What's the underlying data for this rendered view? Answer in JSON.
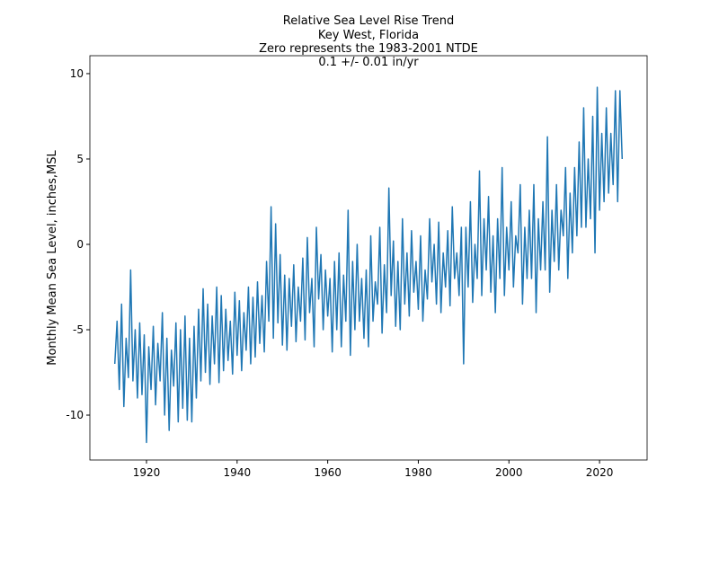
{
  "chart_data": {
    "type": "line",
    "title": "Relative Sea Level Rise Trend",
    "subtitle": [
      "Key West, Florida",
      "Zero represents the 1983-2001 NTDE",
      "0.1 +/- 0.01 in/yr"
    ],
    "y_label": "Monthly Mean Sea Level, inches,MSL",
    "xlim": [
      1907.5,
      2030.5
    ],
    "xticks": [
      1920,
      1940,
      1960,
      1980,
      2000,
      2020
    ],
    "ylim": [
      -12.63,
      11.05
    ],
    "yticks": [
      -10,
      -5,
      0,
      5,
      10
    ],
    "grid": false,
    "x": [
      1913,
      1913.5,
      1914,
      1914.5,
      1915,
      1915.5,
      1916,
      1916.5,
      1917,
      1917.5,
      1918,
      1918.5,
      1919,
      1919.5,
      1920,
      1920.5,
      1921,
      1921.5,
      1922,
      1922.5,
      1923,
      1923.5,
      1924,
      1924.5,
      1925,
      1925.5,
      1926,
      1926.5,
      1927,
      1927.5,
      1928,
      1928.5,
      1929,
      1929.5,
      1930,
      1930.5,
      1931,
      1931.5,
      1932,
      1932.5,
      1933,
      1933.5,
      1934,
      1934.5,
      1935,
      1935.5,
      1936,
      1936.5,
      1937,
      1937.5,
      1938,
      1938.5,
      1939,
      1939.5,
      1940,
      1940.5,
      1941,
      1941.5,
      1942,
      1942.5,
      1943,
      1943.5,
      1944,
      1944.5,
      1945,
      1945.5,
      1946,
      1946.5,
      1947,
      1947.5,
      1948,
      1948.5,
      1949,
      1949.5,
      1950,
      1950.5,
      1951,
      1951.5,
      1952,
      1952.5,
      1953,
      1953.5,
      1954,
      1954.5,
      1955,
      1955.5,
      1956,
      1956.5,
      1957,
      1957.5,
      1958,
      1958.5,
      1959,
      1959.5,
      1960,
      1960.5,
      1961,
      1961.5,
      1962,
      1962.5,
      1963,
      1963.5,
      1964,
      1964.5,
      1965,
      1965.5,
      1966,
      1966.5,
      1967,
      1967.5,
      1968,
      1968.5,
      1969,
      1969.5,
      1970,
      1970.5,
      1971,
      1971.5,
      1972,
      1972.5,
      1973,
      1973.5,
      1974,
      1974.5,
      1975,
      1975.5,
      1976,
      1976.5,
      1977,
      1977.5,
      1978,
      1978.5,
      1979,
      1979.5,
      1980,
      1980.5,
      1981,
      1981.5,
      1982,
      1982.5,
      1983,
      1983.5,
      1984,
      1984.5,
      1985,
      1985.5,
      1986,
      1986.5,
      1987,
      1987.5,
      1988,
      1988.5,
      1989,
      1989.5,
      1990,
      1990.5,
      1991,
      1991.5,
      1992,
      1992.5,
      1993,
      1993.5,
      1994,
      1994.5,
      1995,
      1995.5,
      1996,
      1996.5,
      1997,
      1997.5,
      1998,
      1998.5,
      1999,
      1999.5,
      2000,
      2000.5,
      2001,
      2001.5,
      2002,
      2002.5,
      2003,
      2003.5,
      2004,
      2004.5,
      2005,
      2005.5,
      2006,
      2006.5,
      2007,
      2007.5,
      2008,
      2008.5,
      2009,
      2009.5,
      2010,
      2010.5,
      2011,
      2011.5,
      2012,
      2012.5,
      2013,
      2013.5,
      2014,
      2014.5,
      2015,
      2015.5,
      2016,
      2016.5,
      2017,
      2017.5,
      2018,
      2018.5,
      2019,
      2019.5,
      2020,
      2020.5,
      2021,
      2021.5,
      2022,
      2022.5,
      2023,
      2023.5,
      2024,
      2024.5,
      2025
    ],
    "series": [
      {
        "name": "Monthly Mean Sea Level",
        "color": "#1f77b4",
        "values": [
          -7.0,
          -4.5,
          -8.5,
          -3.5,
          -9.5,
          -5.5,
          -7.8,
          -1.5,
          -8.0,
          -5.0,
          -9.0,
          -4.6,
          -8.8,
          -5.3,
          -11.6,
          -6.0,
          -8.5,
          -4.8,
          -9.4,
          -5.8,
          -8.0,
          -4.0,
          -10.0,
          -5.5,
          -10.9,
          -6.2,
          -8.3,
          -4.6,
          -10.4,
          -5.0,
          -9.6,
          -4.2,
          -10.3,
          -5.5,
          -10.4,
          -4.8,
          -9.0,
          -3.8,
          -8.0,
          -2.6,
          -7.5,
          -3.5,
          -8.2,
          -4.2,
          -7.0,
          -2.5,
          -8.1,
          -3.0,
          -7.4,
          -3.8,
          -6.8,
          -4.5,
          -7.6,
          -2.8,
          -6.5,
          -3.3,
          -7.4,
          -4.0,
          -6.2,
          -2.5,
          -7.0,
          -3.1,
          -6.6,
          -2.2,
          -5.8,
          -3.0,
          -6.3,
          -1.0,
          -4.5,
          2.2,
          -5.5,
          1.2,
          -4.6,
          -0.6,
          -5.9,
          -1.8,
          -6.2,
          -2.0,
          -4.8,
          -1.2,
          -5.7,
          -2.5,
          -4.5,
          -0.8,
          -5.6,
          0.4,
          -4.0,
          -2.0,
          -6.0,
          1.0,
          -3.2,
          -0.6,
          -5.0,
          -1.5,
          -4.2,
          -2.0,
          -6.3,
          -1.0,
          -5.0,
          -0.5,
          -6.0,
          -1.8,
          -4.5,
          2.0,
          -6.5,
          -1.0,
          -5.0,
          0.0,
          -4.5,
          -2.0,
          -5.5,
          -1.5,
          -6.0,
          0.5,
          -4.5,
          -2.2,
          -3.5,
          1.0,
          -5.2,
          -1.2,
          -4.0,
          3.3,
          -3.0,
          0.2,
          -4.8,
          -1.0,
          -5.0,
          1.5,
          -3.5,
          -0.5,
          -4.2,
          0.8,
          -2.8,
          -1.0,
          -3.8,
          0.5,
          -4.5,
          -1.5,
          -3.2,
          1.5,
          -2.2,
          0.0,
          -3.5,
          1.3,
          -4.0,
          -0.5,
          -2.5,
          0.8,
          -3.6,
          2.2,
          -2.0,
          -0.5,
          -3.0,
          1.0,
          -7.0,
          1.0,
          -2.5,
          2.5,
          -3.4,
          0.0,
          -2.0,
          4.3,
          -3.0,
          1.5,
          -1.5,
          2.8,
          -2.8,
          0.5,
          -4.0,
          1.5,
          -2.0,
          4.5,
          -3.0,
          1.0,
          -1.5,
          2.5,
          -2.5,
          0.5,
          -0.5,
          3.5,
          -3.5,
          1.0,
          -2.0,
          2.0,
          -2.0,
          3.5,
          -4.0,
          1.5,
          -1.5,
          2.5,
          -1.5,
          6.3,
          -2.8,
          2.0,
          -1.0,
          3.5,
          -1.5,
          2.0,
          0.5,
          4.5,
          -2.0,
          3.0,
          -0.5,
          4.5,
          0.5,
          6.0,
          1.0,
          8.0,
          1.0,
          5.0,
          1.5,
          7.5,
          -0.5,
          9.2,
          2.0,
          6.5,
          2.5,
          8.0,
          3.0,
          6.5,
          3.5,
          9.0,
          2.5,
          9.0,
          5.0
        ]
      }
    ]
  }
}
